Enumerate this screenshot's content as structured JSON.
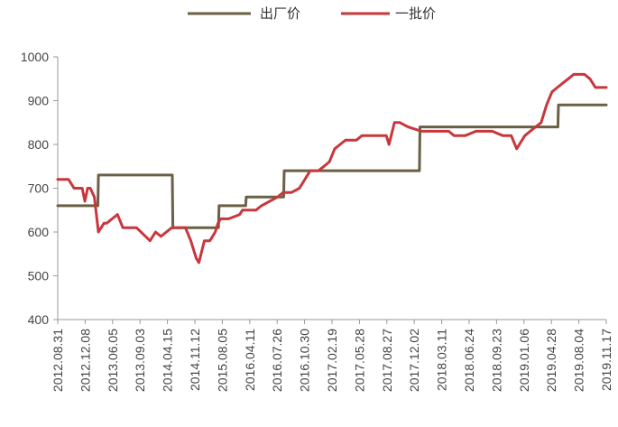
{
  "chart_data": {
    "type": "line",
    "title": "",
    "xlabel": "",
    "ylabel": "",
    "ylim": [
      400,
      1000
    ],
    "yticks": [
      400,
      500,
      600,
      700,
      800,
      900,
      1000
    ],
    "grid": false,
    "legend_position": "top-center",
    "x_tick_labels": [
      "2012.08.31",
      "2012.12.08",
      "2013.06.05",
      "2013.09.03",
      "2014.04.15",
      "2014.11.12",
      "2015.08.05",
      "2016.04.11",
      "2016.07.26",
      "2016.10.30",
      "2017.02.19",
      "2017.05.28",
      "2017.08.27",
      "2017.12.02",
      "2018.03.11",
      "2018.06.24",
      "2018.09.23",
      "2019.01.06",
      "2019.04.28",
      "2019.08.04",
      "2019.11.17"
    ],
    "series": [
      {
        "name": "出厂价",
        "color": "#6b6045",
        "x": [
          0,
          1.48,
          1.5,
          4.22,
          4.24,
          5.92,
          5.94,
          6.92,
          6.94,
          8.32,
          8.34,
          13.32,
          13.34,
          18.42,
          18.44,
          20.2
        ],
        "values": [
          660,
          660,
          730,
          730,
          610,
          610,
          660,
          660,
          680,
          680,
          740,
          740,
          840,
          840,
          890,
          890
        ]
      },
      {
        "name": "一批价",
        "color": "#c8373c",
        "x": [
          0,
          0.4,
          0.6,
          0.9,
          1.0,
          1.1,
          1.2,
          1.35,
          1.5,
          1.7,
          1.8,
          2.2,
          2.4,
          2.6,
          2.9,
          3.4,
          3.6,
          3.8,
          4.0,
          4.2,
          4.4,
          4.7,
          4.9,
          5.0,
          5.1,
          5.2,
          5.4,
          5.6,
          5.8,
          5.9,
          6.0,
          6.3,
          6.7,
          6.8,
          7.0,
          7.3,
          7.5,
          8.1,
          8.3,
          8.6,
          8.9,
          9.0,
          9.3,
          9.6,
          9.8,
          10.0,
          10.2,
          10.4,
          10.6,
          11.0,
          11.2,
          11.4,
          11.6,
          12.1,
          12.2,
          12.4,
          12.6,
          12.9,
          13.4,
          13.8,
          14.4,
          14.6,
          15.0,
          15.4,
          15.6,
          16.0,
          16.4,
          16.5,
          16.7,
          16.9,
          17.0,
          17.2,
          17.4,
          17.6,
          17.8,
          18.0,
          18.2,
          18.4,
          18.6,
          18.8,
          19.0,
          19.4,
          19.6,
          19.8,
          20.0,
          20.2
        ],
        "values": [
          720,
          720,
          700,
          700,
          670,
          700,
          700,
          680,
          600,
          620,
          620,
          640,
          610,
          610,
          610,
          580,
          600,
          590,
          600,
          610,
          610,
          610,
          580,
          560,
          540,
          530,
          580,
          580,
          600,
          620,
          630,
          630,
          640,
          650,
          650,
          650,
          660,
          680,
          690,
          690,
          700,
          710,
          740,
          740,
          750,
          760,
          790,
          800,
          810,
          810,
          820,
          820,
          820,
          820,
          800,
          850,
          850,
          840,
          830,
          830,
          830,
          820,
          820,
          830,
          830,
          830,
          820,
          820,
          820,
          790,
          800,
          820,
          830,
          840,
          850,
          890,
          920,
          930,
          940,
          950,
          960,
          960,
          950,
          930,
          930,
          930
        ]
      }
    ]
  }
}
